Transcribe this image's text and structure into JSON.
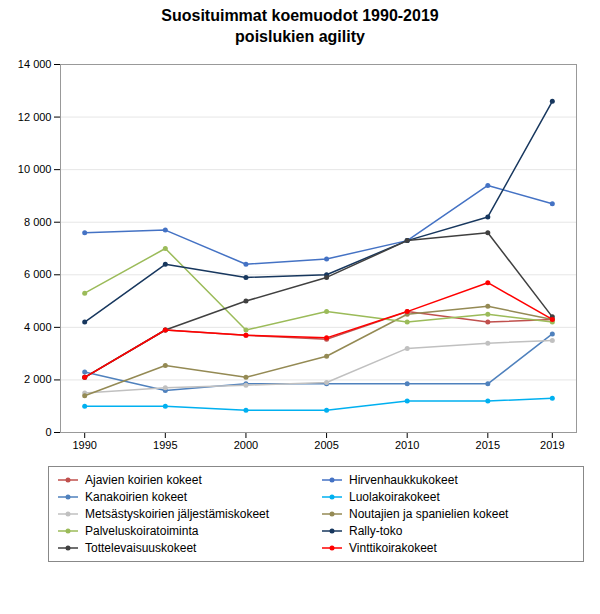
{
  "chart_data": {
    "type": "line",
    "title": "Suosituimmat koemuodot 1990-2019\npoislukien agility",
    "x": [
      1990,
      1995,
      2000,
      2005,
      2010,
      2015,
      2019
    ],
    "series": [
      {
        "name": "Ajavien koirien kokeet",
        "color": "#c0504d",
        "values": [
          2100,
          3900,
          3700,
          3550,
          4600,
          4200,
          4300
        ]
      },
      {
        "name": "Hirvenhaukkukokeet",
        "color": "#4472c4",
        "values": [
          7600,
          7700,
          6400,
          6600,
          7300,
          9400,
          8700
        ]
      },
      {
        "name": "Kanakoirien kokeet",
        "color": "#4f81bd",
        "values": [
          2300,
          1600,
          1850,
          1850,
          1850,
          1850,
          3750
        ]
      },
      {
        "name": "Luolakoirakokeet",
        "color": "#00b0f0",
        "values": [
          1000,
          1000,
          850,
          850,
          1200,
          1200,
          1300
        ]
      },
      {
        "name": "Metsästyskoirien jäljestämiskokeet",
        "color": "#c0c0c0",
        "values": [
          1500,
          1700,
          1800,
          1900,
          3200,
          3400,
          3500
        ]
      },
      {
        "name": "Noutajien ja spanielien kokeet",
        "color": "#948a54",
        "values": [
          1400,
          2550,
          2100,
          2900,
          4500,
          4800,
          4300
        ]
      },
      {
        "name": "Palveluskoiratoiminta",
        "color": "#9bbb59",
        "values": [
          5300,
          7000,
          3900,
          4600,
          4200,
          4500,
          4200
        ]
      },
      {
        "name": "Rally-toko",
        "color": "#17375e",
        "values": [
          4200,
          6400,
          5900,
          6000,
          7300,
          8200,
          12600
        ]
      },
      {
        "name": "Tottelevaisuuskokeet",
        "color": "#404040",
        "values": [
          2100,
          3900,
          5000,
          5900,
          7300,
          7600,
          4400
        ]
      },
      {
        "name": "Vinttikoirakokeet",
        "color": "#ff0000",
        "values": [
          2100,
          3900,
          3700,
          3600,
          4600,
          5700,
          4300
        ]
      }
    ],
    "xlim": [
      1988.5,
      2020.5
    ],
    "ylim": [
      0,
      14000
    ],
    "xticks": [
      1990,
      1995,
      2000,
      2005,
      2010,
      2015,
      2019
    ],
    "yticks": [
      0,
      {
        "value": 2000,
        "label": "2 000"
      },
      {
        "value": 4000,
        "label": "4 000"
      },
      {
        "value": 6000,
        "label": "6 000"
      },
      {
        "value": 8000,
        "label": "8 000"
      },
      {
        "value": 10000,
        "label": "10 000"
      },
      {
        "value": 12000,
        "label": "12 000"
      },
      {
        "value": 14000,
        "label": "14 000"
      }
    ],
    "grid": true,
    "legend": "bottom",
    "marker": "circle"
  }
}
